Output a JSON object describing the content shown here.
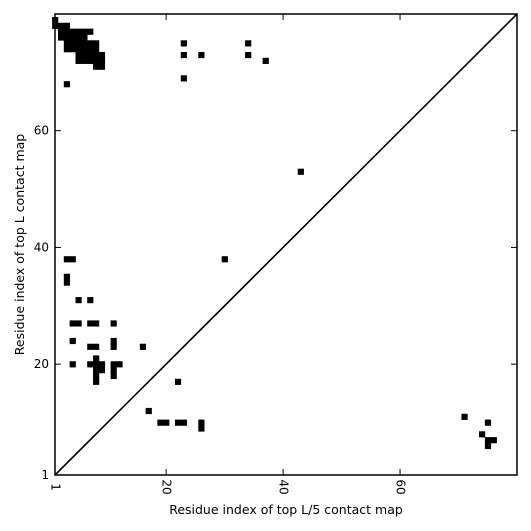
{
  "chart_data": {
    "type": "heatmap",
    "title": "",
    "xlabel": "Residue index of top L/5 contact map",
    "ylabel": "Residue index of top L contact map",
    "xlim": [
      1,
      80
    ],
    "ylim": [
      1,
      80
    ],
    "x_ticks": [
      {
        "value": 1,
        "label": "1"
      },
      {
        "value": 20,
        "label": "20"
      },
      {
        "value": 40,
        "label": "40"
      },
      {
        "value": 60,
        "label": "60"
      }
    ],
    "y_ticks": [
      {
        "value": 1,
        "label": "1"
      },
      {
        "value": 20,
        "label": "20"
      },
      {
        "value": 40,
        "label": "40"
      },
      {
        "value": 60,
        "label": "60"
      }
    ],
    "x_minor_ticks": [
      80
    ],
    "y_minor_ticks": [
      80
    ],
    "diagonal": true,
    "grid": false,
    "cell_color": "#000000",
    "top_L_contacts": [
      [
        1,
        79
      ],
      [
        1,
        78
      ],
      [
        2,
        78
      ],
      [
        3,
        78
      ],
      [
        2,
        77
      ],
      [
        3,
        77
      ],
      [
        4,
        77
      ],
      [
        5,
        77
      ],
      [
        6,
        77
      ],
      [
        7,
        77
      ],
      [
        2,
        76
      ],
      [
        3,
        76
      ],
      [
        4,
        76
      ],
      [
        5,
        76
      ],
      [
        6,
        76
      ],
      [
        3,
        75
      ],
      [
        4,
        75
      ],
      [
        5,
        75
      ],
      [
        6,
        75
      ],
      [
        7,
        75
      ],
      [
        8,
        75
      ],
      [
        3,
        74
      ],
      [
        4,
        74
      ],
      [
        5,
        74
      ],
      [
        6,
        74
      ],
      [
        7,
        74
      ],
      [
        8,
        74
      ],
      [
        5,
        73
      ],
      [
        6,
        73
      ],
      [
        7,
        73
      ],
      [
        8,
        73
      ],
      [
        9,
        73
      ],
      [
        5,
        72
      ],
      [
        6,
        72
      ],
      [
        7,
        72
      ],
      [
        8,
        72
      ],
      [
        9,
        72
      ],
      [
        8,
        71
      ],
      [
        9,
        71
      ],
      [
        23,
        75
      ],
      [
        23,
        73
      ],
      [
        26,
        73
      ],
      [
        23,
        69
      ],
      [
        34,
        75
      ],
      [
        34,
        73
      ],
      [
        37,
        72
      ],
      [
        3,
        68
      ],
      [
        43,
        53
      ],
      [
        3,
        38
      ],
      [
        4,
        38
      ],
      [
        3,
        35
      ],
      [
        3,
        34
      ],
      [
        5,
        31
      ],
      [
        7,
        31
      ],
      [
        4,
        27
      ],
      [
        5,
        27
      ],
      [
        7,
        27
      ],
      [
        8,
        27
      ],
      [
        11,
        27
      ],
      [
        4,
        24
      ],
      [
        11,
        24
      ],
      [
        7,
        23
      ],
      [
        8,
        23
      ],
      [
        11,
        23
      ],
      [
        16,
        23
      ],
      [
        8,
        21
      ],
      [
        8,
        20
      ],
      [
        4,
        20
      ],
      [
        7,
        20
      ],
      [
        8,
        20
      ],
      [
        9,
        20
      ],
      [
        11,
        20
      ],
      [
        12,
        20
      ],
      [
        8,
        19
      ],
      [
        9,
        19
      ],
      [
        11,
        19
      ],
      [
        8,
        18
      ],
      [
        11,
        18
      ],
      [
        8,
        17
      ],
      [
        22,
        17
      ],
      [
        30,
        38
      ],
      [
        17,
        12
      ],
      [
        19,
        10
      ],
      [
        20,
        10
      ],
      [
        22,
        10
      ],
      [
        23,
        10
      ],
      [
        26,
        10
      ],
      [
        26,
        9
      ]
    ],
    "top_L5_contacts": [
      [
        71,
        11
      ],
      [
        75,
        10
      ],
      [
        74,
        8
      ],
      [
        75,
        7
      ],
      [
        76,
        7
      ],
      [
        75,
        6
      ]
    ]
  }
}
